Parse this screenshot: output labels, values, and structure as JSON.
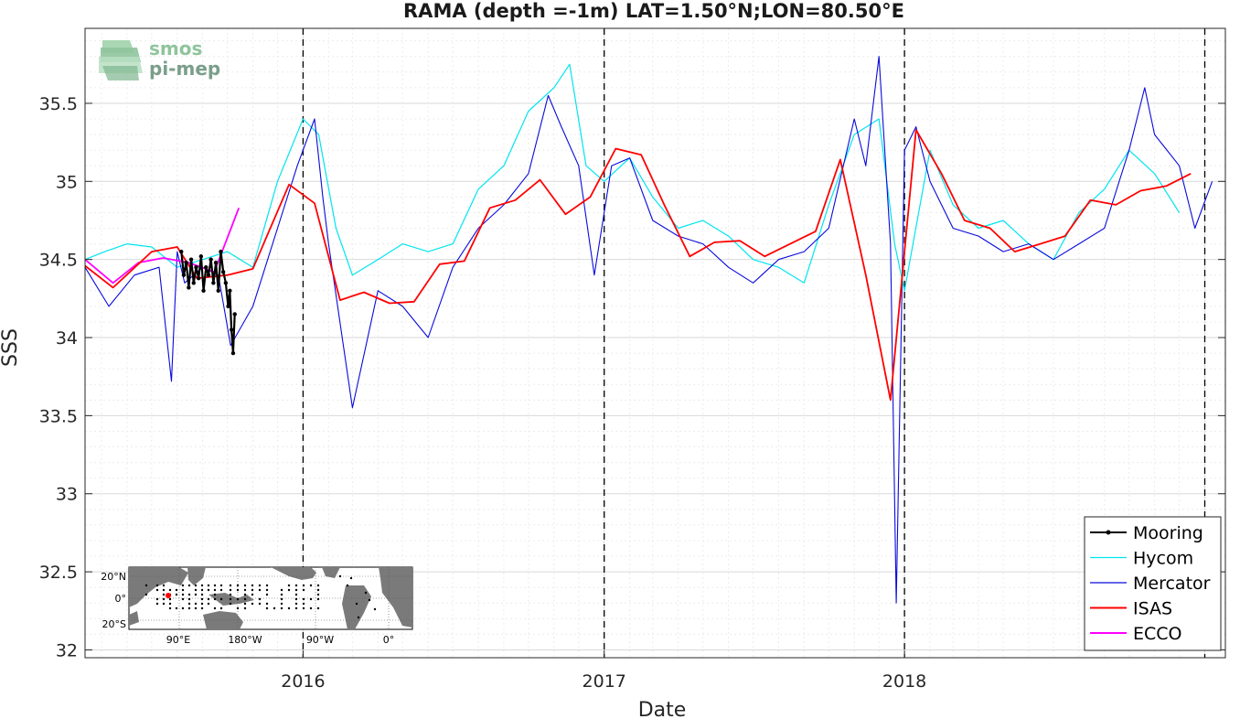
{
  "chart_data": {
    "type": "line",
    "title": "RAMA (depth =-1m) LAT=1.50°N;LON=80.50°E",
    "xlabel": "Date",
    "ylabel": "SSS",
    "xlim": [
      "2015-04-11",
      "2019-01-26"
    ],
    "ylim": [
      31.95,
      35.98
    ],
    "yticks": [
      32,
      32.5,
      33,
      33.5,
      34,
      34.5,
      35,
      35.5
    ],
    "ytick_labels": [
      "32",
      "32.5",
      "33",
      "33.5",
      "34",
      "34.5",
      "35",
      "35.5"
    ],
    "xticks": [
      "2016-01-01",
      "2017-01-01",
      "2018-01-01"
    ],
    "xtick_labels": [
      "2016",
      "2017",
      "2018"
    ],
    "vlines": [
      "2016-01-01",
      "2017-01-01",
      "2018-01-01",
      "2019-01-01"
    ],
    "grid": true,
    "legend_position": "bottom-right",
    "series": [
      {
        "name": "Mooring",
        "color": "#000000",
        "marker": "dot",
        "x": [
          "2015-08-06",
          "2015-08-09",
          "2015-08-12",
          "2015-08-15",
          "2015-08-18",
          "2015-08-21",
          "2015-08-24",
          "2015-08-27",
          "2015-08-30",
          "2015-09-02",
          "2015-09-05",
          "2015-09-08",
          "2015-09-11",
          "2015-09-14",
          "2015-09-17",
          "2015-09-20",
          "2015-09-23",
          "2015-09-26",
          "2015-09-29",
          "2015-10-02",
          "2015-10-04",
          "2015-10-06",
          "2015-10-08",
          "2015-10-10"
        ],
        "y": [
          34.55,
          34.4,
          34.48,
          34.32,
          34.5,
          34.35,
          34.45,
          34.38,
          34.52,
          34.3,
          34.45,
          34.4,
          34.5,
          34.35,
          34.48,
          34.3,
          34.55,
          34.42,
          34.35,
          34.2,
          34.3,
          34.05,
          33.9,
          34.15
        ]
      },
      {
        "name": "Hycom",
        "color": "#00e5ee",
        "x": [
          "2015-04-11",
          "2015-05-05",
          "2015-06-01",
          "2015-07-01",
          "2015-08-01",
          "2015-09-01",
          "2015-10-01",
          "2015-11-01",
          "2015-12-01",
          "2016-01-01",
          "2016-01-20",
          "2016-02-10",
          "2016-03-01",
          "2016-04-01",
          "2016-05-01",
          "2016-06-01",
          "2016-07-01",
          "2016-08-01",
          "2016-09-01",
          "2016-10-01",
          "2016-11-01",
          "2016-11-20",
          "2016-12-10",
          "2017-01-01",
          "2017-02-01",
          "2017-03-01",
          "2017-04-01",
          "2017-05-01",
          "2017-06-01",
          "2017-07-01",
          "2017-08-01",
          "2017-09-01",
          "2017-10-01",
          "2017-11-01",
          "2017-12-01",
          "2017-12-20",
          "2018-01-01",
          "2018-02-01",
          "2018-03-01",
          "2018-04-01",
          "2018-05-01",
          "2018-06-01",
          "2018-07-01",
          "2018-08-01",
          "2018-09-01",
          "2018-10-01",
          "2018-11-01",
          "2018-12-01"
        ],
        "y": [
          34.5,
          34.55,
          34.6,
          34.58,
          34.45,
          34.5,
          34.55,
          34.45,
          35.0,
          35.4,
          35.3,
          34.7,
          34.4,
          34.5,
          34.6,
          34.55,
          34.6,
          34.95,
          35.1,
          35.45,
          35.6,
          35.75,
          35.1,
          35.0,
          35.15,
          34.9,
          34.7,
          34.75,
          34.65,
          34.5,
          34.45,
          34.35,
          34.85,
          35.3,
          35.4,
          34.6,
          34.3,
          35.2,
          34.85,
          34.7,
          34.75,
          34.6,
          34.5,
          34.8,
          34.95,
          35.2,
          35.05,
          34.8
        ]
      },
      {
        "name": "Mercator",
        "color": "#0a0adc",
        "x": [
          "2015-04-11",
          "2015-05-10",
          "2015-06-10",
          "2015-07-10",
          "2015-07-25",
          "2015-08-01",
          "2015-08-10",
          "2015-09-01",
          "2015-09-20",
          "2015-10-05",
          "2015-11-01",
          "2015-12-01",
          "2015-12-25",
          "2016-01-15",
          "2016-01-25",
          "2016-02-01",
          "2016-03-01",
          "2016-04-01",
          "2016-05-01",
          "2016-06-01",
          "2016-07-01",
          "2016-08-01",
          "2016-09-01",
          "2016-10-01",
          "2016-10-25",
          "2016-11-10",
          "2016-12-01",
          "2016-12-20",
          "2017-01-10",
          "2017-02-01",
          "2017-03-01",
          "2017-04-01",
          "2017-05-01",
          "2017-06-01",
          "2017-07-01",
          "2017-08-01",
          "2017-09-01",
          "2017-10-01",
          "2017-11-01",
          "2017-11-15",
          "2017-12-01",
          "2017-12-15",
          "2017-12-22",
          "2018-01-01",
          "2018-01-15",
          "2018-02-01",
          "2018-03-01",
          "2018-04-01",
          "2018-05-01",
          "2018-06-01",
          "2018-07-01",
          "2018-08-01",
          "2018-09-01",
          "2018-10-01",
          "2018-10-20",
          "2018-11-01",
          "2018-12-01",
          "2018-12-20",
          "2019-01-10"
        ],
        "y": [
          34.45,
          34.2,
          34.4,
          34.45,
          33.72,
          34.55,
          34.35,
          34.45,
          34.4,
          33.95,
          34.2,
          34.7,
          35.1,
          35.4,
          34.9,
          34.6,
          33.55,
          34.3,
          34.2,
          34.0,
          34.45,
          34.7,
          34.85,
          35.05,
          35.55,
          35.35,
          35.1,
          34.4,
          35.1,
          35.15,
          34.75,
          34.65,
          34.6,
          34.45,
          34.35,
          34.5,
          34.55,
          34.7,
          35.4,
          35.1,
          35.8,
          34.6,
          32.3,
          35.2,
          35.35,
          35.0,
          34.7,
          34.65,
          34.55,
          34.6,
          34.5,
          34.6,
          34.7,
          35.2,
          35.6,
          35.3,
          35.1,
          34.7,
          35.0
        ]
      },
      {
        "name": "ISAS",
        "color": "#ff0000",
        "x": [
          "2015-04-11",
          "2015-05-15",
          "2015-07-01",
          "2015-08-01",
          "2015-08-25",
          "2015-10-01",
          "2015-11-01",
          "2015-12-15",
          "2016-01-15",
          "2016-02-15",
          "2016-03-15",
          "2016-04-15",
          "2016-05-15",
          "2016-06-15",
          "2016-07-15",
          "2016-08-15",
          "2016-09-15",
          "2016-10-15",
          "2016-11-15",
          "2016-12-15",
          "2017-01-15",
          "2017-02-15",
          "2017-03-15",
          "2017-04-15",
          "2017-05-15",
          "2017-06-15",
          "2017-07-15",
          "2017-08-15",
          "2017-09-15",
          "2017-10-15",
          "2017-11-15",
          "2017-12-15",
          "2018-01-15",
          "2018-02-15",
          "2018-03-15",
          "2018-04-15",
          "2018-05-15",
          "2018-06-15",
          "2018-07-15",
          "2018-08-15",
          "2018-09-15",
          "2018-10-15",
          "2018-11-15",
          "2018-12-15"
        ],
        "y": [
          34.46,
          34.32,
          34.55,
          34.58,
          34.38,
          34.4,
          34.44,
          34.98,
          34.86,
          34.24,
          34.29,
          34.22,
          34.23,
          34.47,
          34.49,
          34.83,
          34.88,
          35.01,
          34.79,
          34.9,
          35.21,
          35.17,
          34.85,
          34.52,
          34.61,
          34.62,
          34.52,
          34.6,
          34.68,
          35.14,
          34.4,
          33.6,
          35.33,
          35.05,
          34.75,
          34.7,
          34.55,
          34.6,
          34.65,
          34.88,
          34.85,
          34.94,
          34.97,
          35.05
        ]
      },
      {
        "name": "ECCO",
        "color": "#ff00ff",
        "x": [
          "2015-04-11",
          "2015-05-15",
          "2015-06-15",
          "2015-07-15",
          "2015-08-15",
          "2015-09-15",
          "2015-10-15"
        ],
        "y": [
          34.5,
          34.35,
          34.48,
          34.51,
          34.48,
          34.42,
          34.83
        ]
      }
    ],
    "annotations": {
      "logo_line1": "smos",
      "logo_line2": "pi-mep",
      "inset_map": {
        "lat_labels": [
          "20°N",
          "0°",
          "20°S"
        ],
        "lon_labels": [
          "90°E",
          "180°W",
          "90°W",
          "0°"
        ]
      }
    }
  }
}
